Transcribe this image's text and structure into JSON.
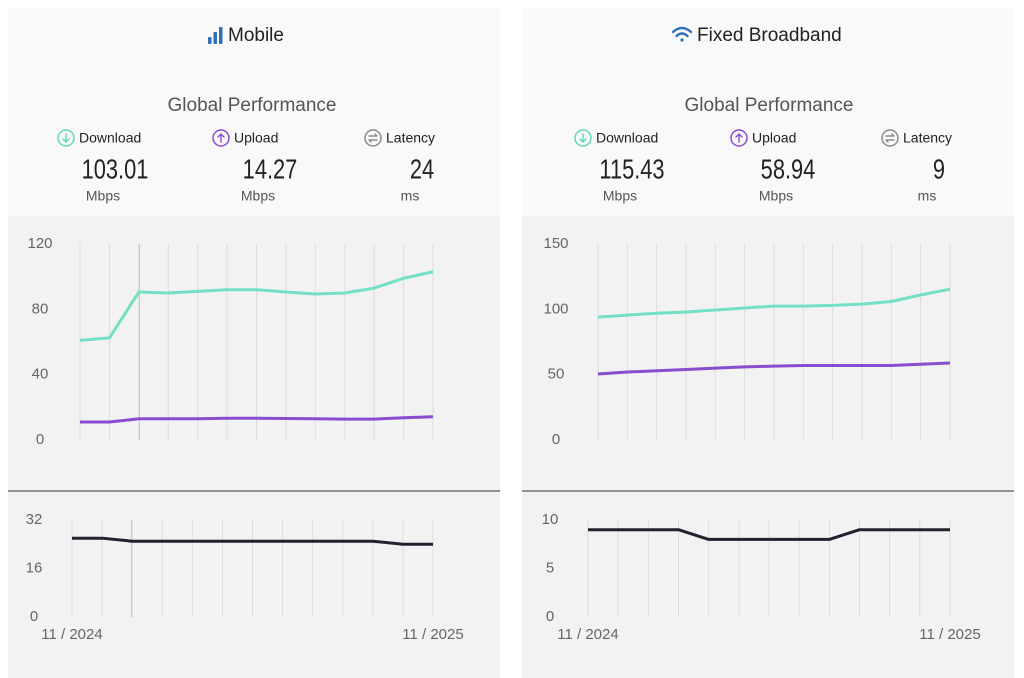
{
  "panels": [
    {
      "title": "Mobile",
      "subtitle": "Global Performance",
      "metrics": [
        {
          "label": "Download",
          "value": 103.01,
          "unit": "Mbps",
          "color": "#5fd8b8"
        },
        {
          "label": "Upload",
          "value": 14.27,
          "unit": "Mbps",
          "color": "#8a4ccf"
        },
        {
          "label": "Latency",
          "value": 24,
          "unit": "ms",
          "color": "#8a8a8a"
        }
      ],
      "charts": [
        {
          "type": "line",
          "categories": [
            null,
            null,
            null,
            null,
            null,
            null,
            null,
            null,
            null,
            null,
            null,
            null,
            null
          ],
          "ylim": [
            0,
            120
          ],
          "yticks": [
            0,
            40,
            80,
            120
          ],
          "series": [
            {
              "color": "#72e0c5",
              "values": [
                61,
                62.5,
                90.6,
                90,
                91,
                92,
                92,
                90.6,
                89.4,
                90,
                93,
                99,
                103.01
              ]
            },
            {
              "color": "#8a4ccf",
              "values": [
                11,
                11,
                13,
                13,
                13,
                13.3,
                13.3,
                13.2,
                13,
                12.8,
                12.8,
                13.6,
                14.27
              ]
            }
          ]
        },
        {
          "type": "line",
          "categories": [
            "11 / 2024",
            null,
            null,
            null,
            null,
            null,
            null,
            null,
            null,
            null,
            null,
            null,
            "11 / 2025"
          ],
          "ylim": [
            0,
            32
          ],
          "yticks": [
            0,
            16,
            32
          ],
          "series": [
            {
              "color": "#1f2330",
              "values": [
                26,
                26,
                25,
                25,
                25,
                25,
                25,
                25,
                25,
                25,
                25,
                24,
                24
              ]
            }
          ]
        }
      ]
    },
    {
      "title": "Fixed Broadband",
      "subtitle": "Global Performance",
      "metrics": [
        {
          "label": "Download",
          "value": 115.43,
          "unit": "Mbps",
          "color": "#5fd8b8"
        },
        {
          "label": "Upload",
          "value": 58.94,
          "unit": "Mbps",
          "color": "#8a4ccf"
        },
        {
          "label": "Latency",
          "value": 9,
          "unit": "ms",
          "color": "#8a8a8a"
        }
      ],
      "charts": [
        {
          "type": "line",
          "categories": [
            null,
            null,
            null,
            null,
            null,
            null,
            null,
            null,
            null,
            null,
            null,
            null,
            null
          ],
          "ylim": [
            0,
            150
          ],
          "yticks": [
            0,
            50,
            100,
            150
          ],
          "series": [
            {
              "color": "#72e0c5",
              "values": [
                94,
                95.6,
                97,
                98,
                99.5,
                101,
                102.5,
                102.5,
                103,
                104,
                106,
                111,
                115.43
              ]
            },
            {
              "color": "#8a4ccf",
              "values": [
                50.5,
                52,
                53,
                54,
                55,
                56,
                56.5,
                57,
                57,
                57,
                57,
                58,
                58.94
              ]
            }
          ]
        },
        {
          "type": "line",
          "categories": [
            "11 / 2024",
            null,
            null,
            null,
            null,
            null,
            null,
            null,
            null,
            null,
            null,
            null,
            "11 / 2025"
          ],
          "ylim": [
            0,
            10
          ],
          "yticks": [
            0,
            5,
            10
          ],
          "series": [
            {
              "color": "#1f2330",
              "values": [
                9,
                9,
                9,
                9,
                8,
                8,
                8,
                8,
                8,
                9,
                9,
                9,
                9
              ]
            }
          ]
        }
      ]
    }
  ]
}
